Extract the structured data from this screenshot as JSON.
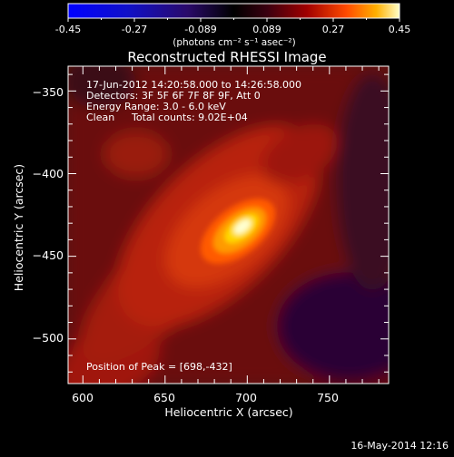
{
  "colorbar": {
    "ticks": [
      "-0.45",
      "-0.27",
      "-0.089",
      "0.089",
      "0.27",
      "0.45"
    ],
    "units": "(photons cm⁻² s⁻¹ asec⁻²)"
  },
  "chart_data": {
    "type": "heatmap",
    "title": "Reconstructed RHESSI Image",
    "xlabel": "Heliocentric X (arcsec)",
    "ylabel": "Heliocentric Y (arcsec)",
    "xlim": [
      591,
      786
    ],
    "ylim": [
      -527,
      -335
    ],
    "x_ticks": [
      600,
      650,
      700,
      750
    ],
    "y_ticks": [
      -350,
      -400,
      -450,
      -500
    ],
    "color_range": [
      -0.45,
      0.45
    ],
    "peak_position": [
      698,
      -432
    ],
    "annotations": [
      "17-Jun-2012 14:20:58.000 to 14:26:58.000",
      "Detectors: 3F 5F 6F 7F 8F 9F, Att 0",
      "Energy Range: 3.0 - 6.0 keV",
      "Clean",
      "Total counts: 9.02E+04"
    ],
    "peak_label": "Position of Peak = [698,-432]"
  },
  "footer": {
    "timestamp": "16-May-2014 12:16"
  }
}
